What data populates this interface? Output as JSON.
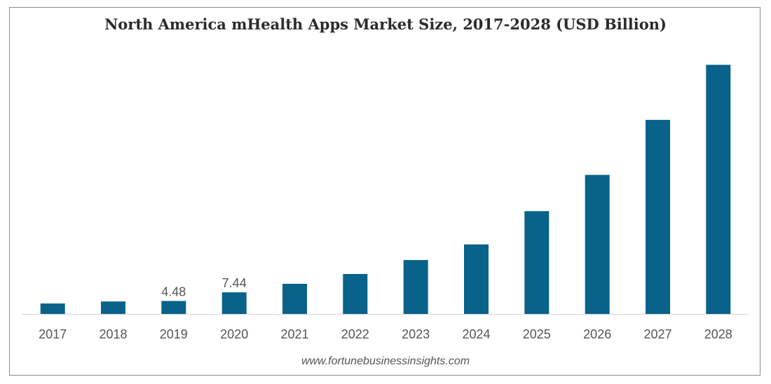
{
  "chart_data": {
    "type": "bar",
    "title": "North America mHealth Apps Market Size, 2017-2028 (USD Billion)",
    "categories": [
      "2017",
      "2018",
      "2019",
      "2020",
      "2021",
      "2022",
      "2023",
      "2024",
      "2025",
      "2026",
      "2027",
      "2028"
    ],
    "values": [
      3.6,
      4.3,
      4.48,
      7.44,
      10.4,
      13.8,
      18.6,
      24.0,
      35.5,
      48.0,
      67.0,
      86.0
    ],
    "data_labels": {
      "2019": "4.48",
      "2020": "7.44"
    },
    "ylim": [
      0,
      90
    ],
    "grid": false,
    "bar_color": "#08628a",
    "axis_color": "#d4d4d4"
  },
  "source": "www.fortunebusinessinsights.com"
}
